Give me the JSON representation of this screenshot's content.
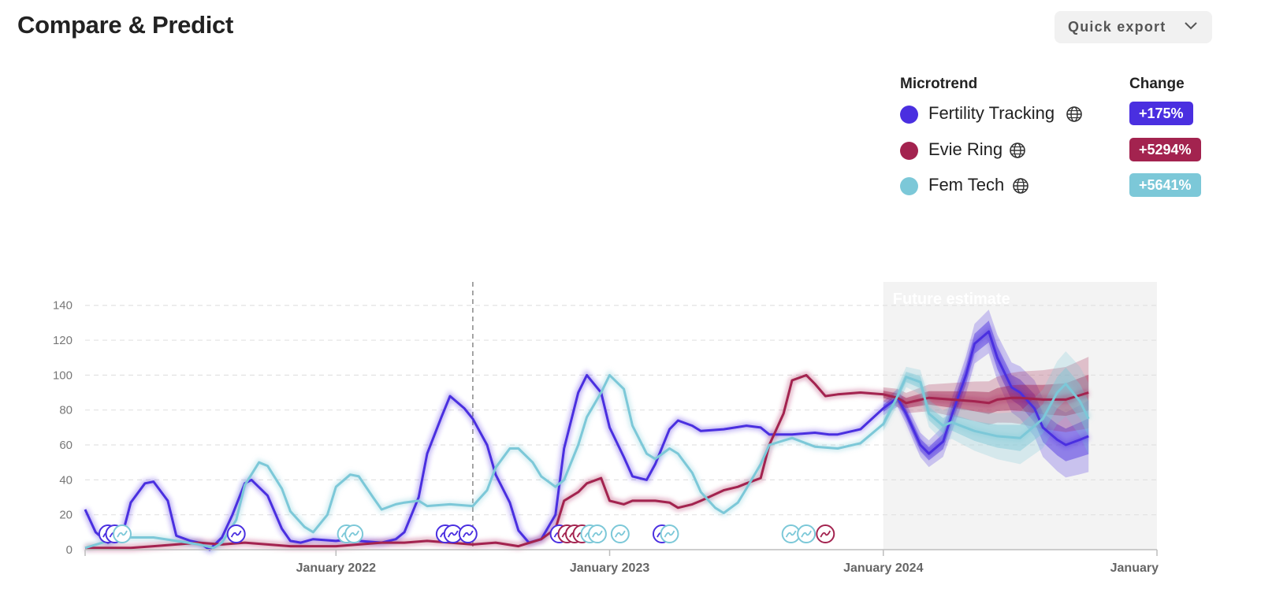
{
  "header": {
    "title": "Compare & Predict",
    "export_label": "Quick export"
  },
  "legend": {
    "microtrend_heading": "Microtrend",
    "change_heading": "Change",
    "items": [
      {
        "name": "Fertility Tracking",
        "change": "+175%",
        "color": "#4a2fe0"
      },
      {
        "name": "Evie Ring",
        "change": "+5294%",
        "color": "#a3234f"
      },
      {
        "name": "Fem Tech",
        "change": "+5641%",
        "color": "#7cc8d8"
      }
    ]
  },
  "chart_data": {
    "type": "line",
    "x_axis": {
      "ticks": [
        "January 2022",
        "January 2023",
        "January 2024",
        "January"
      ],
      "range": [
        "2021-02",
        "2025-01"
      ]
    },
    "y_axis": {
      "ticks": [
        0,
        20,
        40,
        60,
        80,
        100,
        120,
        140
      ],
      "range": [
        0,
        148
      ]
    },
    "future_label": "Future estimate",
    "future_start": "2024-01",
    "marker_line": "2022-07",
    "grid": "horizontal dashed",
    "series": [
      {
        "name": "Fertility Tracking",
        "color": "#4a2fe0",
        "points": [
          [
            "2021-02",
            23
          ],
          [
            "2021-02-15",
            10
          ],
          [
            "2021-03",
            4
          ],
          [
            "2021-03-20",
            8
          ],
          [
            "2021-04",
            27
          ],
          [
            "2021-04-20",
            38
          ],
          [
            "2021-05",
            39
          ],
          [
            "2021-05-20",
            28
          ],
          [
            "2021-06",
            8
          ],
          [
            "2021-06-20",
            5
          ],
          [
            "2021-07",
            4
          ],
          [
            "2021-07-15",
            0
          ],
          [
            "2021-08",
            7
          ],
          [
            "2021-08-15",
            20
          ],
          [
            "2021-09",
            38
          ],
          [
            "2021-09-10",
            40
          ],
          [
            "2021-10",
            31
          ],
          [
            "2021-10-20",
            12
          ],
          [
            "2021-11",
            5
          ],
          [
            "2021-11-15",
            4
          ],
          [
            "2021-12",
            6
          ],
          [
            "2022-01",
            5
          ],
          [
            "2022-01-20",
            6
          ],
          [
            "2022-02",
            5
          ],
          [
            "2022-03",
            4
          ],
          [
            "2022-03-20",
            6
          ],
          [
            "2022-04",
            10
          ],
          [
            "2022-04-20",
            30
          ],
          [
            "2022-05",
            55
          ],
          [
            "2022-05-20",
            76
          ],
          [
            "2022-06",
            88
          ],
          [
            "2022-06-20",
            81
          ],
          [
            "2022-07",
            75
          ],
          [
            "2022-07-20",
            60
          ],
          [
            "2022-08",
            43
          ],
          [
            "2022-08-20",
            27
          ],
          [
            "2022-09",
            11
          ],
          [
            "2022-09-15",
            4
          ],
          [
            "2022-10",
            6
          ],
          [
            "2022-10-20",
            20
          ],
          [
            "2022-11",
            58
          ],
          [
            "2022-11-20",
            90
          ],
          [
            "2022-12",
            100
          ],
          [
            "2022-12-20",
            90
          ],
          [
            "2023-01",
            70
          ],
          [
            "2023-01-20",
            53
          ],
          [
            "2023-02",
            42
          ],
          [
            "2023-02-20",
            40
          ],
          [
            "2023-03",
            49
          ],
          [
            "2023-03-20",
            69
          ],
          [
            "2023-04",
            74
          ],
          [
            "2023-04-20",
            71
          ],
          [
            "2023-05",
            68
          ],
          [
            "2023-06",
            69
          ],
          [
            "2023-07",
            71
          ],
          [
            "2023-07-20",
            70
          ],
          [
            "2023-08",
            66
          ],
          [
            "2023-09",
            66
          ],
          [
            "2023-10",
            67
          ],
          [
            "2023-10-20",
            66
          ],
          [
            "2023-11",
            66
          ],
          [
            "2023-12",
            69
          ],
          [
            "2024-01",
            81
          ],
          [
            "2024-01-20",
            87
          ],
          [
            "2024-02",
            78
          ],
          [
            "2024-02-20",
            60
          ],
          [
            "2024-03",
            55
          ],
          [
            "2024-03-20",
            62
          ],
          [
            "2024-04",
            77
          ],
          [
            "2024-04-20",
            100
          ],
          [
            "2024-05",
            118
          ],
          [
            "2024-05-20",
            125
          ],
          [
            "2024-06",
            110
          ],
          [
            "2024-06-20",
            93
          ],
          [
            "2024-07",
            90
          ],
          [
            "2024-07-20",
            81
          ],
          [
            "2024-08",
            70
          ],
          [
            "2024-08-20",
            63
          ],
          [
            "2024-09",
            60
          ],
          [
            "2024-09-20",
            63
          ],
          [
            "2024-10",
            65
          ]
        ]
      },
      {
        "name": "Evie Ring",
        "color": "#a3234f",
        "points": [
          [
            "2021-02",
            1
          ],
          [
            "2021-03",
            1
          ],
          [
            "2021-04",
            1
          ],
          [
            "2021-05",
            2
          ],
          [
            "2021-06",
            3
          ],
          [
            "2021-07",
            4
          ],
          [
            "2021-08",
            3
          ],
          [
            "2021-09",
            4
          ],
          [
            "2021-10",
            3
          ],
          [
            "2021-11",
            2
          ],
          [
            "2021-12",
            2
          ],
          [
            "2022-01",
            2
          ],
          [
            "2022-02",
            3
          ],
          [
            "2022-03",
            4
          ],
          [
            "2022-04",
            4
          ],
          [
            "2022-05",
            5
          ],
          [
            "2022-06",
            4
          ],
          [
            "2022-07",
            3
          ],
          [
            "2022-08",
            4
          ],
          [
            "2022-09",
            2
          ],
          [
            "2022-10",
            6
          ],
          [
            "2022-10-20",
            12
          ],
          [
            "2022-11",
            28
          ],
          [
            "2022-11-20",
            33
          ],
          [
            "2022-12",
            38
          ],
          [
            "2022-12-20",
            41
          ],
          [
            "2023-01",
            28
          ],
          [
            "2023-01-20",
            26
          ],
          [
            "2023-02",
            28
          ],
          [
            "2023-03",
            28
          ],
          [
            "2023-03-20",
            27
          ],
          [
            "2023-04",
            24
          ],
          [
            "2023-04-20",
            26
          ],
          [
            "2023-05",
            28
          ],
          [
            "2023-06",
            34
          ],
          [
            "2023-06-20",
            36
          ],
          [
            "2023-07",
            38
          ],
          [
            "2023-07-20",
            41
          ],
          [
            "2023-08",
            60
          ],
          [
            "2023-08-20",
            78
          ],
          [
            "2023-09",
            97
          ],
          [
            "2023-09-20",
            100
          ],
          [
            "2023-10",
            95
          ],
          [
            "2023-10-15",
            88
          ],
          [
            "2023-11",
            89
          ],
          [
            "2023-12",
            90
          ],
          [
            "2024-01",
            89
          ],
          [
            "2024-01-20",
            87
          ],
          [
            "2024-02",
            84
          ],
          [
            "2024-03",
            87
          ],
          [
            "2024-04",
            86
          ],
          [
            "2024-05",
            85
          ],
          [
            "2024-05-20",
            84
          ],
          [
            "2024-06",
            86
          ],
          [
            "2024-06-20",
            87
          ],
          [
            "2024-07",
            87
          ],
          [
            "2024-08",
            86
          ],
          [
            "2024-09",
            86
          ],
          [
            "2024-10",
            90
          ]
        ]
      },
      {
        "name": "Fem Tech",
        "color": "#7cc8d8",
        "points": [
          [
            "2021-02",
            1
          ],
          [
            "2021-03",
            5
          ],
          [
            "2021-04",
            7
          ],
          [
            "2021-05",
            7
          ],
          [
            "2021-06",
            5
          ],
          [
            "2021-07",
            3
          ],
          [
            "2021-07-20",
            1
          ],
          [
            "2021-08",
            4
          ],
          [
            "2021-08-20",
            17
          ],
          [
            "2021-09",
            37
          ],
          [
            "2021-09-20",
            50
          ],
          [
            "2021-10",
            48
          ],
          [
            "2021-10-20",
            35
          ],
          [
            "2021-11",
            22
          ],
          [
            "2021-11-20",
            13
          ],
          [
            "2021-12",
            10
          ],
          [
            "2021-12-20",
            20
          ],
          [
            "2022-01",
            36
          ],
          [
            "2022-01-20",
            43
          ],
          [
            "2022-02",
            42
          ],
          [
            "2022-02-20",
            30
          ],
          [
            "2022-03",
            23
          ],
          [
            "2022-03-20",
            26
          ],
          [
            "2022-04",
            27
          ],
          [
            "2022-04-20",
            28
          ],
          [
            "2022-05",
            25
          ],
          [
            "2022-06",
            26
          ],
          [
            "2022-07",
            25
          ],
          [
            "2022-07-20",
            34
          ],
          [
            "2022-08",
            47
          ],
          [
            "2022-08-20",
            58
          ],
          [
            "2022-09",
            58
          ],
          [
            "2022-09-20",
            50
          ],
          [
            "2022-10",
            42
          ],
          [
            "2022-10-20",
            36
          ],
          [
            "2022-11",
            40
          ],
          [
            "2022-11-20",
            60
          ],
          [
            "2022-12",
            76
          ],
          [
            "2022-12-20",
            90
          ],
          [
            "2023-01",
            100
          ],
          [
            "2023-01-20",
            92
          ],
          [
            "2023-02",
            71
          ],
          [
            "2023-02-20",
            55
          ],
          [
            "2023-03",
            52
          ],
          [
            "2023-03-20",
            58
          ],
          [
            "2023-04",
            55
          ],
          [
            "2023-04-20",
            44
          ],
          [
            "2023-05",
            33
          ],
          [
            "2023-05-20",
            24
          ],
          [
            "2023-06",
            21
          ],
          [
            "2023-06-20",
            27
          ],
          [
            "2023-07",
            35
          ],
          [
            "2023-07-20",
            49
          ],
          [
            "2023-08",
            60
          ],
          [
            "2023-09",
            64
          ],
          [
            "2023-10",
            59
          ],
          [
            "2023-11",
            58
          ],
          [
            "2023-12",
            61
          ],
          [
            "2024-01",
            72
          ],
          [
            "2024-01-20",
            88
          ],
          [
            "2024-02",
            99
          ],
          [
            "2024-02-20",
            96
          ],
          [
            "2024-03",
            78
          ],
          [
            "2024-03-20",
            71
          ],
          [
            "2024-04",
            73
          ],
          [
            "2024-05",
            68
          ],
          [
            "2024-06",
            65
          ],
          [
            "2024-07",
            64
          ],
          [
            "2024-08",
            75
          ],
          [
            "2024-08-20",
            90
          ],
          [
            "2024-09",
            95
          ],
          [
            "2024-09-20",
            85
          ],
          [
            "2024-10",
            75
          ]
        ]
      }
    ],
    "events": [
      {
        "series": "Fertility Tracking",
        "x": [
          "2021-03",
          "2021-03-10",
          "2021-08-20",
          "2022-05-25",
          "2022-06-05",
          "2022-06-25",
          "2022-10-25",
          "2023-03-10"
        ]
      },
      {
        "series": "Evie Ring",
        "x": [
          "2022-11-05",
          "2022-11-15",
          "2022-11-25",
          "2023-10-15"
        ]
      },
      {
        "series": "Fem Tech",
        "x": [
          "2021-03-20",
          "2022-01-15",
          "2022-01-25",
          "2022-12-05",
          "2022-12-15",
          "2023-01-15",
          "2023-03-20",
          "2023-08-30",
          "2023-09-20"
        ]
      }
    ]
  }
}
